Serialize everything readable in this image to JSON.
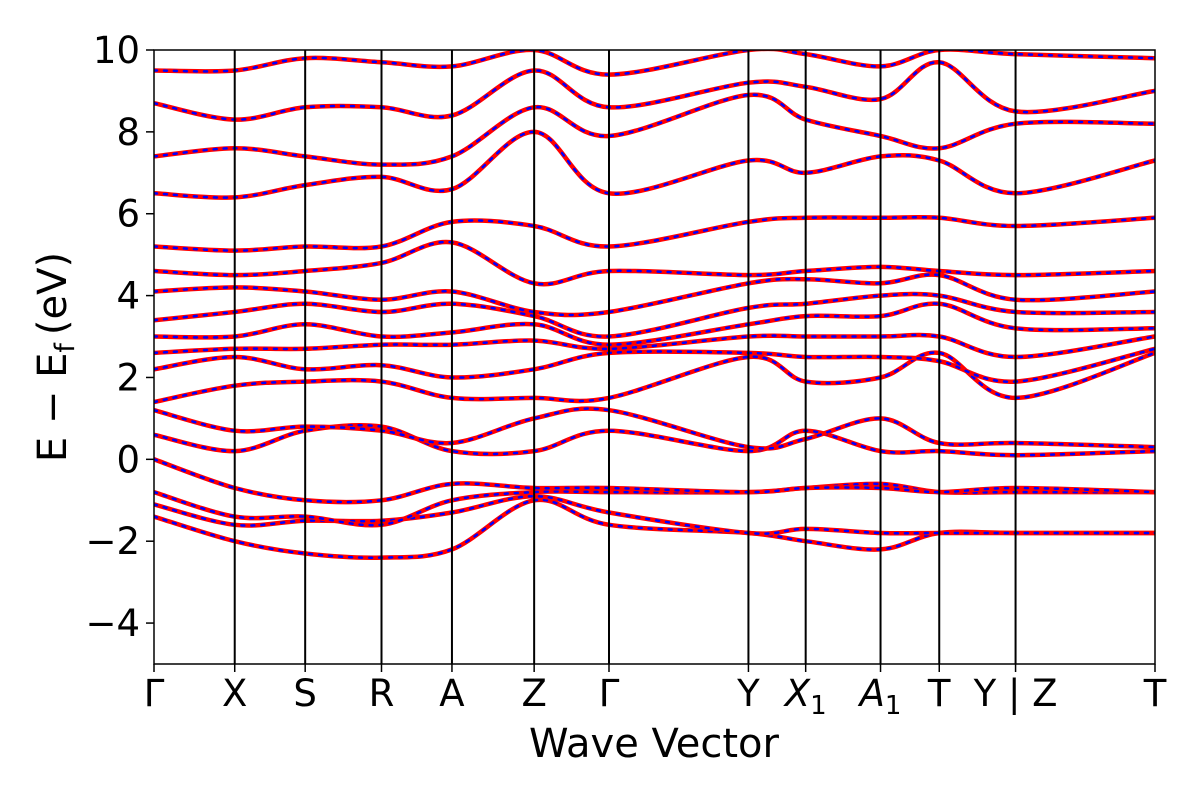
{
  "chart_data": {
    "type": "line",
    "title": "",
    "xlabel": "Wave Vector",
    "ylabel": "E − E",
    "ylabel_sub": "f",
    "ylabel_unit": "(eV)",
    "ylim": [
      -5,
      10
    ],
    "yticks": [
      -4,
      -2,
      0,
      2,
      4,
      6,
      8,
      10
    ],
    "ytick_labels": [
      "−4",
      "−2",
      "0",
      "2",
      "4",
      "6",
      "8",
      "10"
    ],
    "grid": false,
    "legend": "none",
    "colors": {
      "band_red": "#ff0000",
      "band_blue": "#0000ff",
      "axis": "#000000"
    },
    "kpath": {
      "positions": [
        0,
        0.55,
        1.03,
        1.55,
        2.03,
        2.59,
        3.1,
        4.05,
        4.44,
        4.95,
        5.35,
        5.87,
        6.82
      ],
      "labels": [
        {
          "main": "Γ",
          "sub": ""
        },
        {
          "main": "X",
          "sub": ""
        },
        {
          "main": "S",
          "sub": ""
        },
        {
          "main": "R",
          "sub": ""
        },
        {
          "main": "A",
          "sub": ""
        },
        {
          "main": "Z",
          "sub": ""
        },
        {
          "main": "Γ",
          "sub": ""
        },
        {
          "main": "Y",
          "sub": ""
        },
        {
          "main": "X",
          "sub": "1"
        },
        {
          "main": "A",
          "sub": "1"
        },
        {
          "main": "T",
          "sub": ""
        },
        {
          "main": "Y | Z",
          "sub": ""
        },
        {
          "main": "T",
          "sub": ""
        }
      ]
    },
    "x": [
      0,
      0.55,
      1.03,
      1.55,
      2.03,
      2.59,
      3.1,
      4.05,
      4.44,
      4.95,
      5.35,
      5.87,
      6.82
    ],
    "series": [
      {
        "values": [
          -1.4,
          -2.0,
          -2.3,
          -2.4,
          -2.2,
          -1.0,
          -1.6,
          -1.8,
          -2.0,
          -2.2,
          -1.8,
          -1.8,
          -1.8
        ]
      },
      {
        "values": [
          -1.1,
          -1.6,
          -1.5,
          -1.5,
          -1.3,
          -0.9,
          -1.3,
          -1.8,
          -1.7,
          -1.8,
          -1.8,
          -1.8,
          -1.8
        ]
      },
      {
        "values": [
          -0.8,
          -1.4,
          -1.4,
          -1.6,
          -1.0,
          -0.8,
          -0.8,
          -0.8,
          -0.7,
          -0.6,
          -0.8,
          -0.8,
          -0.8
        ]
      },
      {
        "values": [
          0.0,
          -0.7,
          -1.0,
          -1.0,
          -0.6,
          -0.7,
          -0.7,
          -0.8,
          -0.7,
          -0.7,
          -0.8,
          -0.7,
          -0.8
        ]
      },
      {
        "values": [
          0.6,
          0.2,
          0.7,
          0.8,
          0.2,
          0.2,
          0.7,
          0.2,
          0.7,
          0.2,
          0.2,
          0.1,
          0.2
        ]
      },
      {
        "values": [
          1.2,
          0.7,
          0.8,
          0.7,
          0.4,
          1.0,
          1.2,
          0.3,
          0.5,
          1.0,
          0.4,
          0.4,
          0.3
        ]
      },
      {
        "values": [
          1.4,
          1.8,
          1.9,
          1.9,
          1.5,
          1.5,
          1.5,
          2.5,
          1.9,
          2.0,
          2.6,
          1.5,
          2.6
        ]
      },
      {
        "values": [
          2.2,
          2.5,
          2.2,
          2.3,
          2.0,
          2.2,
          2.6,
          2.6,
          2.5,
          2.5,
          2.4,
          1.9,
          2.7
        ]
      },
      {
        "values": [
          2.6,
          2.7,
          2.7,
          2.8,
          2.8,
          2.9,
          2.7,
          3.0,
          3.0,
          3.0,
          3.0,
          2.5,
          3.0
        ]
      },
      {
        "values": [
          3.0,
          3.0,
          3.3,
          3.0,
          3.1,
          3.3,
          2.8,
          3.3,
          3.5,
          3.5,
          3.8,
          3.2,
          3.2
        ]
      },
      {
        "values": [
          3.4,
          3.6,
          3.8,
          3.6,
          3.8,
          3.5,
          3.0,
          3.7,
          3.8,
          4.0,
          4.0,
          3.6,
          3.6
        ]
      },
      {
        "values": [
          4.1,
          4.2,
          4.1,
          3.9,
          4.1,
          3.6,
          3.6,
          4.3,
          4.4,
          4.3,
          4.5,
          3.9,
          4.1
        ]
      },
      {
        "values": [
          4.6,
          4.5,
          4.6,
          4.8,
          5.3,
          4.3,
          4.6,
          4.5,
          4.6,
          4.7,
          4.6,
          4.5,
          4.6
        ]
      },
      {
        "values": [
          5.2,
          5.1,
          5.2,
          5.2,
          5.8,
          5.7,
          5.2,
          5.8,
          5.9,
          5.9,
          5.9,
          5.7,
          5.9
        ]
      },
      {
        "values": [
          6.5,
          6.4,
          6.7,
          6.9,
          6.6,
          8.0,
          6.5,
          7.3,
          7.0,
          7.4,
          7.3,
          6.5,
          7.3
        ]
      },
      {
        "values": [
          7.4,
          7.6,
          7.4,
          7.2,
          7.4,
          8.6,
          7.9,
          8.9,
          8.3,
          7.9,
          7.6,
          8.2,
          8.2
        ]
      },
      {
        "values": [
          8.7,
          8.3,
          8.6,
          8.6,
          8.4,
          9.5,
          8.6,
          9.2,
          9.1,
          8.8,
          9.7,
          8.5,
          9.0
        ]
      },
      {
        "values": [
          9.5,
          9.5,
          9.8,
          9.7,
          9.6,
          10.0,
          9.4,
          10.0,
          9.9,
          9.6,
          10.0,
          9.9,
          9.8
        ]
      }
    ]
  }
}
